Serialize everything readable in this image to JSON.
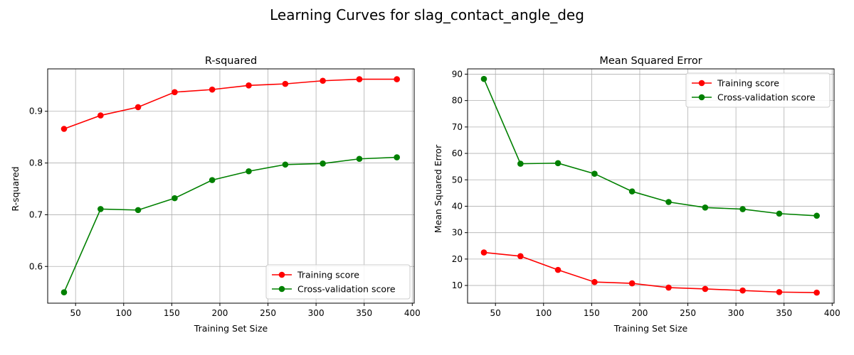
{
  "figure": {
    "title": "Learning Curves for slag_contact_angle_deg"
  },
  "colors": {
    "training": "#ff0000",
    "cross_validation": "#008000"
  },
  "chart_data": [
    {
      "type": "line",
      "title": "R-squared",
      "xlabel": "Training Set Size",
      "ylabel": "R-squared",
      "xlim": [
        21,
        402
      ],
      "ylim": [
        0.529,
        0.982
      ],
      "xticks": [
        50,
        100,
        150,
        200,
        250,
        300,
        350,
        400
      ],
      "yticks": [
        0.6,
        0.7,
        0.8,
        0.9
      ],
      "ytick_labels": [
        "0.6",
        "0.7",
        "0.8",
        "0.9"
      ],
      "grid": true,
      "legend": "lower right",
      "x": [
        38,
        76,
        115,
        153,
        192,
        230,
        268,
        307,
        345,
        384
      ],
      "series": [
        {
          "name": "Training score",
          "color": "#ff0000",
          "values": [
            0.866,
            0.892,
            0.908,
            0.937,
            0.942,
            0.95,
            0.953,
            0.959,
            0.962,
            0.962
          ]
        },
        {
          "name": "Cross-validation score",
          "color": "#008000",
          "values": [
            0.55,
            0.711,
            0.709,
            0.732,
            0.767,
            0.784,
            0.797,
            0.799,
            0.808,
            0.811
          ]
        }
      ]
    },
    {
      "type": "line",
      "title": "Mean Squared Error",
      "xlabel": "Training Set Size",
      "ylabel": "Mean Squared Error",
      "xlim": [
        21,
        402
      ],
      "ylim": [
        3.3,
        92.0
      ],
      "xticks": [
        50,
        100,
        150,
        200,
        250,
        300,
        350,
        400
      ],
      "yticks": [
        10,
        20,
        30,
        40,
        50,
        60,
        70,
        80,
        90
      ],
      "ytick_labels": [
        "10",
        "20",
        "30",
        "40",
        "50",
        "60",
        "70",
        "80",
        "90"
      ],
      "grid": true,
      "legend": "upper right",
      "x": [
        38,
        76,
        115,
        153,
        192,
        230,
        268,
        307,
        345,
        384
      ],
      "series": [
        {
          "name": "Training score",
          "color": "#ff0000",
          "values": [
            22.5,
            21.1,
            15.9,
            11.3,
            10.8,
            9.2,
            8.7,
            8.1,
            7.5,
            7.3
          ]
        },
        {
          "name": "Cross-validation score",
          "color": "#008000",
          "values": [
            88.2,
            56.1,
            56.3,
            52.3,
            45.6,
            41.6,
            39.5,
            38.9,
            37.2,
            36.4
          ]
        }
      ]
    }
  ]
}
